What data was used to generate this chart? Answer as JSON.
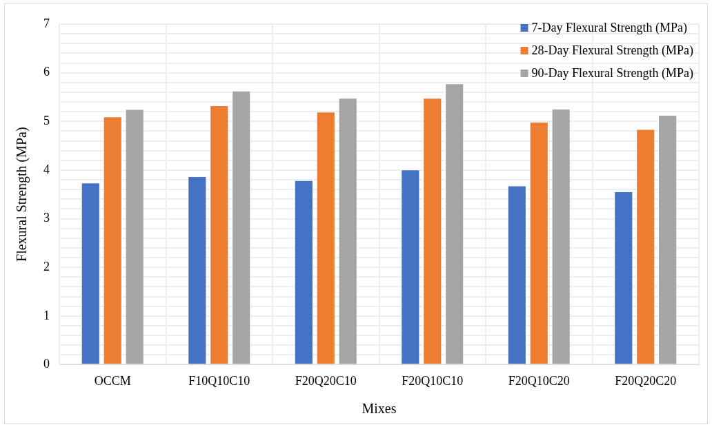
{
  "chart_data": {
    "type": "bar",
    "xlabel": "Mixes",
    "ylabel": "Flexural Strength (MPa)",
    "categories": [
      "OCCM",
      "F10Q10C10",
      "F20Q20C10",
      "F20Q10C10",
      "F20Q10C20",
      "F20Q20C20"
    ],
    "series": [
      {
        "name": "7-Day Flexural Strength (MPa)",
        "color": "#4472c4",
        "values": [
          3.74,
          3.87,
          3.79,
          4.01,
          3.68,
          3.56
        ]
      },
      {
        "name": "28-Day Flexural Strength (MPa)",
        "color": "#ed7d31",
        "values": [
          5.1,
          5.33,
          5.2,
          5.48,
          4.99,
          4.84
        ]
      },
      {
        "name": "90-Day Flexural Strength (MPa)",
        "color": "#a5a5a5",
        "values": [
          5.25,
          5.63,
          5.48,
          5.78,
          5.26,
          5.13
        ]
      }
    ],
    "ylim": [
      0,
      7
    ],
    "yticks": [
      0,
      {
        "value": 0.2,
        "label": null
      },
      {
        "value": 0.4,
        "label": null
      },
      {
        "value": 0.6,
        "label": null
      },
      {
        "value": 0.8,
        "label": null
      },
      1,
      {
        "value": 1.2,
        "label": null
      },
      {
        "value": 1.4,
        "label": null
      },
      {
        "value": 1.6,
        "label": null
      },
      {
        "value": 1.8,
        "label": null
      },
      2,
      {
        "value": 2.2,
        "label": null
      },
      {
        "value": 2.4,
        "label": null
      },
      {
        "value": 2.6,
        "label": null
      },
      {
        "value": 2.8,
        "label": null
      },
      3,
      {
        "value": 3.2,
        "label": null
      },
      {
        "value": 3.4,
        "label": null
      },
      {
        "value": 3.6,
        "label": null
      },
      {
        "value": 3.8,
        "label": null
      },
      4,
      {
        "value": 4.2,
        "label": null
      },
      {
        "value": 4.4,
        "label": null
      },
      {
        "value": 4.6,
        "label": null
      },
      {
        "value": 4.8,
        "label": null
      },
      5,
      {
        "value": 5.2,
        "label": null
      },
      {
        "value": 5.4,
        "label": null
      },
      {
        "value": 5.6,
        "label": null
      },
      {
        "value": 5.8,
        "label": null
      },
      6,
      {
        "value": 6.2,
        "label": null
      },
      {
        "value": 6.4,
        "label": null
      },
      {
        "value": 6.6,
        "label": null
      },
      {
        "value": 6.8,
        "label": null
      },
      7
    ],
    "grid": true,
    "legend": "top right"
  }
}
